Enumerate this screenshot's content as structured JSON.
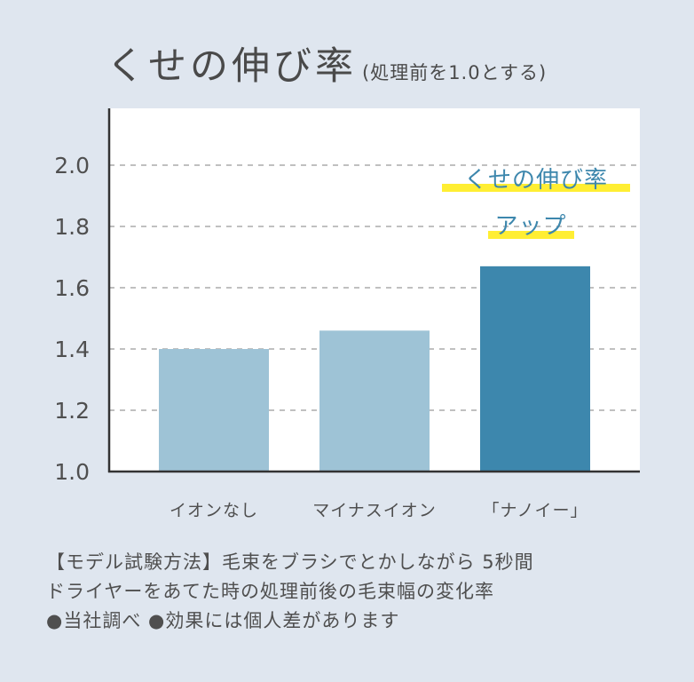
{
  "title": "くせの伸び率",
  "title_sub": "(処理前を1.0とする)",
  "chart_data": {
    "type": "bar",
    "categories": [
      "イオンなし",
      "マイナスイオン",
      "「ナノイー」"
    ],
    "values": [
      1.4,
      1.46,
      1.67
    ],
    "yticks": [
      "1.0",
      "1.2",
      "1.4",
      "1.6",
      "1.8",
      "2.0"
    ],
    "ylim": [
      1.0,
      2.2
    ],
    "grid": true,
    "colors": {
      "bar": "#9ec3d6",
      "bar_highlight": "#3d87ad",
      "highlight_label": "#3d87ad",
      "marker": "#ffee33"
    },
    "highlight_index": 2,
    "annotation": [
      "くせの伸び率",
      "アップ"
    ]
  },
  "notes": [
    "【モデル試験方法】毛束をブラシでとかしながら 5秒間",
    "ドライヤーをあてた時の処理前後の毛束幅の変化率",
    "●当社調べ ●効果には個人差があります"
  ]
}
